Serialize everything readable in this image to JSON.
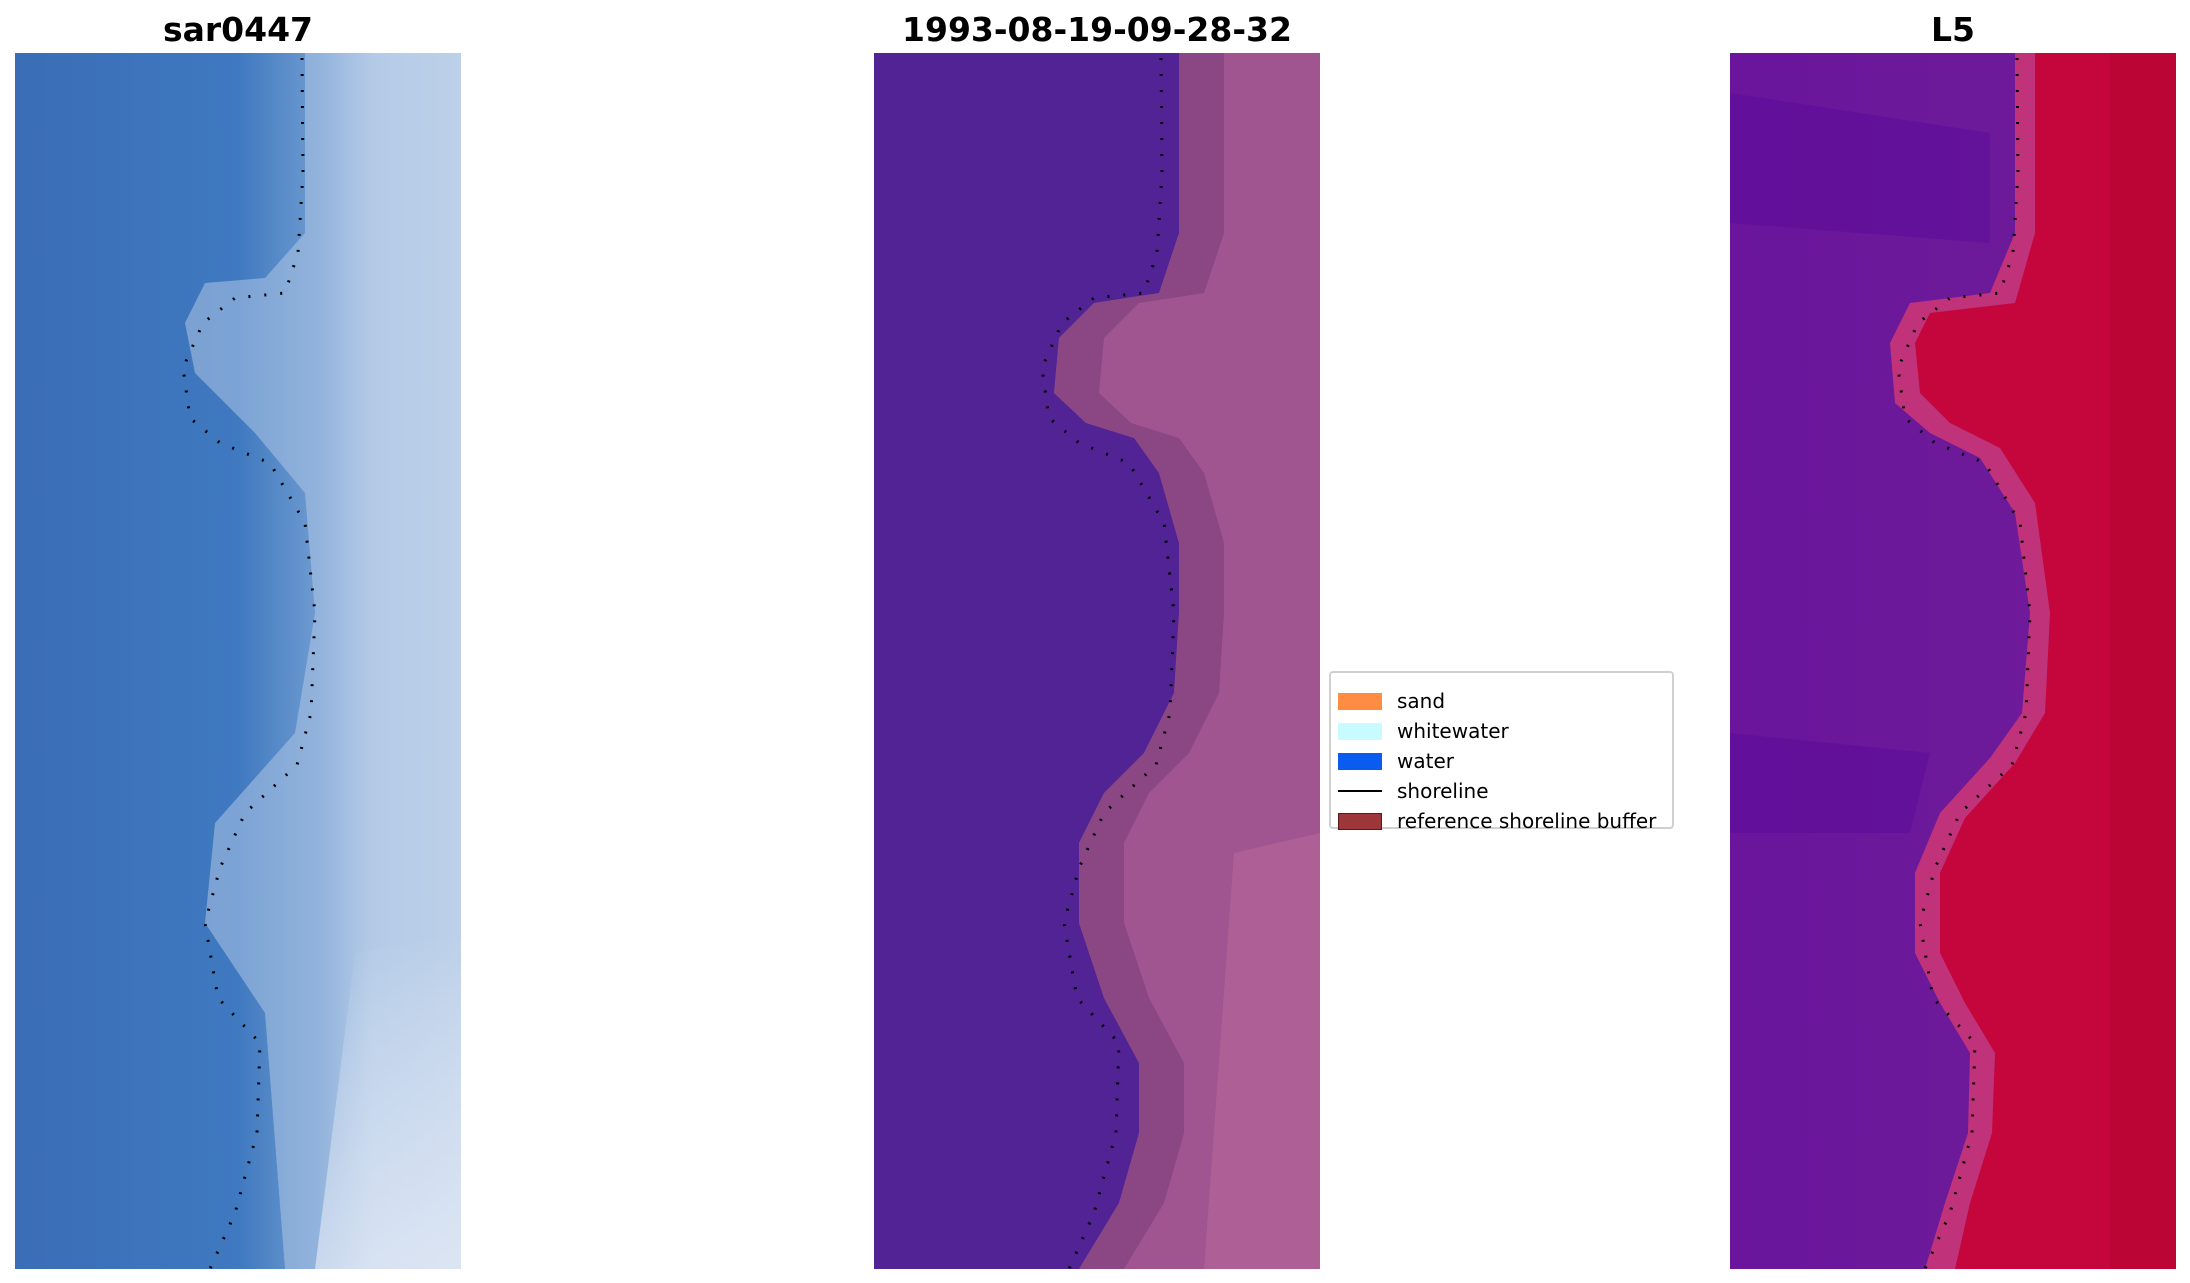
{
  "panels": [
    {
      "title": "sar0447"
    },
    {
      "title": "1993-08-19-09-28-32"
    },
    {
      "title": "L5"
    }
  ],
  "legend": {
    "items": [
      {
        "label": "sand",
        "kind": "patch",
        "color": "#ff8c42"
      },
      {
        "label": "whitewater",
        "kind": "patch",
        "color": "#c8fbff"
      },
      {
        "label": "water",
        "kind": "patch",
        "color": "#0a5cf0"
      },
      {
        "label": "shoreline",
        "kind": "line",
        "color": "#000000"
      },
      {
        "label": "reference shoreline buffer",
        "kind": "patch",
        "color": "#9c3639"
      }
    ]
  }
}
